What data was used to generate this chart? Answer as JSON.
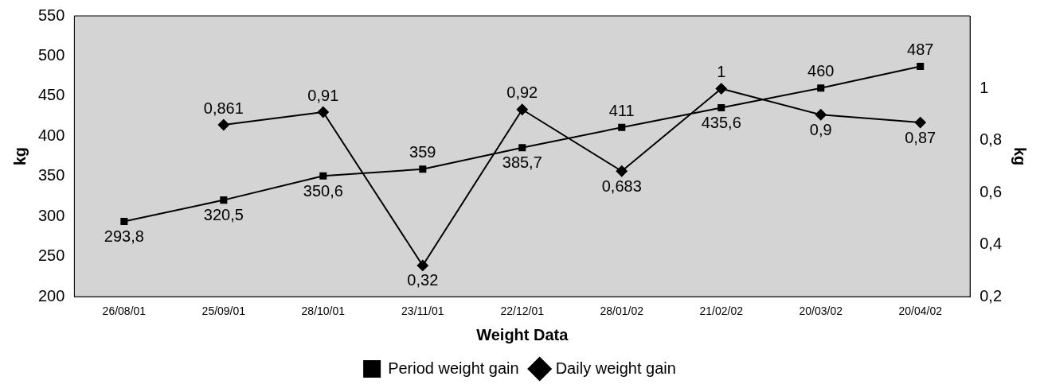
{
  "chart_data": {
    "type": "line",
    "xlabel": "Weight Data",
    "ylabel": "kg",
    "y2label": "kg",
    "categories": [
      "26/08/01",
      "25/09/01",
      "28/10/01",
      "23/11/01",
      "22/12/01",
      "28/01/02",
      "21/02/02",
      "20/03/02",
      "20/04/02"
    ],
    "series": [
      {
        "name": "Period weight gain",
        "color": "#000000",
        "marker": "square",
        "values": [
          293.8,
          320.5,
          350.6,
          359,
          385.7,
          411,
          435.6,
          460,
          487
        ],
        "value_labels": [
          "293,8",
          "320,5",
          "350,6",
          "359",
          "385,7",
          "411",
          "435,6",
          "460",
          "487"
        ]
      },
      {
        "name": "Daily weight gain",
        "color": "#000000",
        "marker": "diamond",
        "axis": "y2",
        "values": [
          null,
          0.861,
          0.91,
          0.32,
          0.92,
          0.683,
          1,
          0.9,
          0.87
        ],
        "value_labels": [
          null,
          "0,861",
          "0,91",
          "0,32",
          "0,92",
          "0,683",
          "1",
          "0,9",
          "0,87"
        ]
      }
    ],
    "ylim": [
      200,
      550
    ],
    "yticks": [
      200,
      250,
      300,
      350,
      400,
      450,
      500,
      550
    ],
    "y2lim": [
      0.2,
      1.28
    ],
    "y2ticks": [
      {
        "value": 0.2,
        "label": "0,2"
      },
      {
        "value": 0.4,
        "label": "0,4"
      },
      {
        "value": 0.6,
        "label": "0,6"
      },
      {
        "value": 0.8,
        "label": "0,8"
      },
      {
        "value": 1,
        "label": "1"
      }
    ],
    "grid": false,
    "legend": "bottom"
  }
}
